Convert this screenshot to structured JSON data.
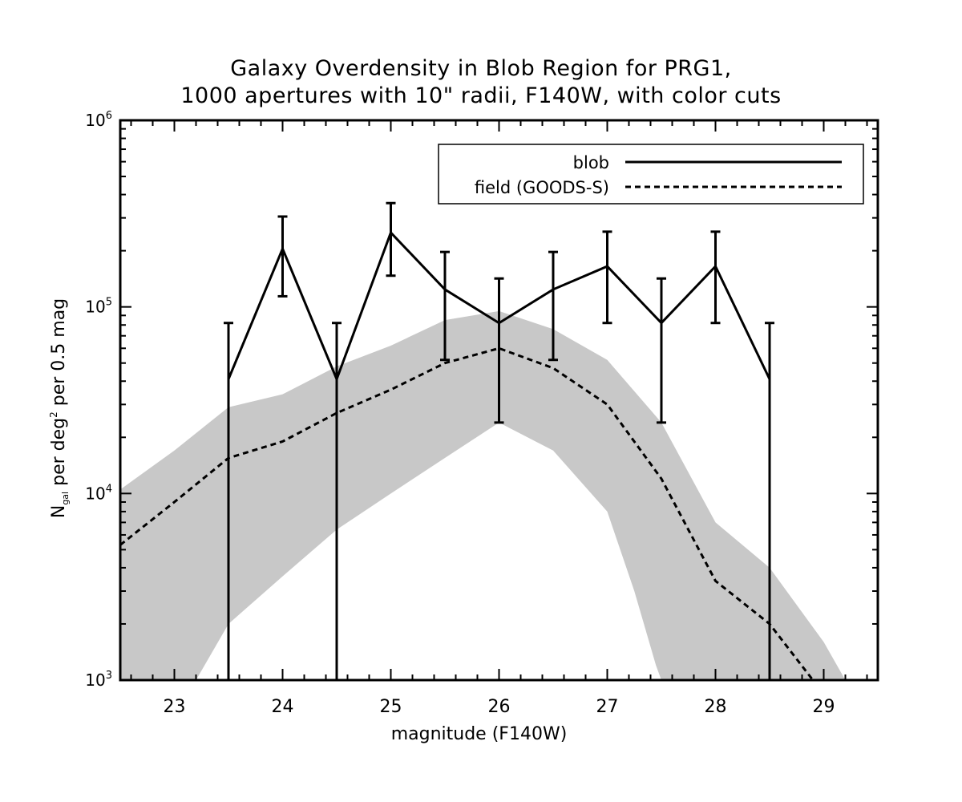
{
  "chart_data": {
    "type": "line",
    "title": "Galaxy Overdensity in Blob Region for PRG1,",
    "subtitle": "1000 apertures with 10\" radii, F140W, with color cuts",
    "xlabel": "magnitude (F140W)",
    "ylabel": {
      "base": "N",
      "sub": "gal",
      "mid": " per deg",
      "sup": "2",
      "tail": " per 0.5 mag"
    },
    "xlim": [
      22.5,
      29.5
    ],
    "ylim": [
      1000,
      1000000
    ],
    "yscale": "log",
    "x_ticks": [
      23,
      24,
      25,
      26,
      27,
      28,
      29
    ],
    "x_tick_labels": [
      "23",
      "24",
      "25",
      "26",
      "27",
      "28",
      "29"
    ],
    "y_ticks": [
      {
        "value": 1000,
        "base": "10",
        "exp": "3"
      },
      {
        "value": 10000,
        "base": "10",
        "exp": "4"
      },
      {
        "value": 100000,
        "base": "10",
        "exp": "5"
      },
      {
        "value": 1000000,
        "base": "10",
        "exp": "6"
      }
    ],
    "legend": {
      "position": "top-right",
      "entries": [
        {
          "label": "blob",
          "style": "solid"
        },
        {
          "label": "field (GOODS-S)",
          "style": "dashed"
        }
      ]
    },
    "series": [
      {
        "name": "blob",
        "style": "solid",
        "x": [
          23.5,
          24.0,
          24.5,
          25.0,
          25.5,
          26.0,
          26.5,
          27.0,
          27.5,
          28.0,
          28.5
        ],
        "y": [
          41000,
          205000,
          41000,
          250000,
          124000,
          82000,
          124000,
          165000,
          82000,
          165000,
          41000
        ],
        "err_low": [
          1000,
          114000,
          1000,
          147000,
          52000,
          24000,
          52000,
          82000,
          24000,
          82000,
          1000
        ],
        "err_high": [
          82000,
          305000,
          82000,
          360000,
          197000,
          142000,
          197000,
          253000,
          142000,
          253000,
          82000
        ]
      },
      {
        "name": "field (GOODS-S)",
        "style": "dashed",
        "x": [
          22.5,
          23.0,
          23.5,
          24.0,
          24.5,
          25.0,
          25.5,
          26.0,
          26.5,
          27.0,
          27.5,
          28.0,
          28.5,
          28.9
        ],
        "y": [
          5300,
          9000,
          15500,
          19000,
          27000,
          36000,
          50000,
          60000,
          47000,
          30000,
          12000,
          3400,
          2000,
          1000
        ]
      }
    ],
    "band": {
      "name": "field range",
      "color": "#c8c8c8",
      "x": [
        22.5,
        23.0,
        23.5,
        24.0,
        24.5,
        25.0,
        25.5,
        26.0,
        26.5,
        27.0,
        27.5,
        28.0,
        28.5,
        29.0,
        29.2
      ],
      "upper": [
        10500,
        17000,
        29000,
        34000,
        48000,
        62000,
        85000,
        95000,
        76000,
        52000,
        24000,
        7000,
        4000,
        1600,
        1000
      ],
      "x_low": [
        22.5,
        23.2,
        23.5,
        24.0,
        24.5,
        25.0,
        25.5,
        26.0,
        26.5,
        27.0,
        27.25,
        27.45,
        27.5
      ],
      "lower": [
        1000,
        1000,
        2000,
        3600,
        6400,
        10000,
        15500,
        24000,
        17000,
        8000,
        3000,
        1200,
        1000
      ]
    },
    "grid": false
  }
}
